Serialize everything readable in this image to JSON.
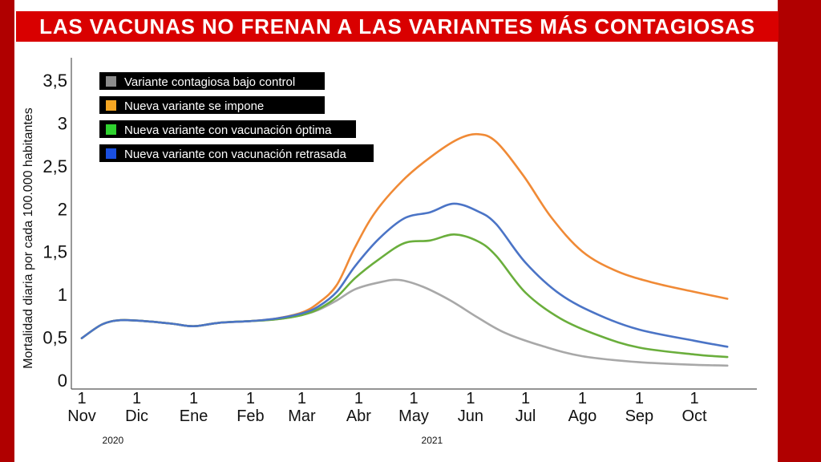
{
  "title": "LAS VACUNAS NO FRENAN A LAS VARIANTES MÁS CONTAGIOSAS",
  "colors": {
    "frame": "#b00000",
    "title_bar": "#d90000"
  },
  "chart_data": {
    "type": "line",
    "title": "LAS VACUNAS NO FRENAN A LAS VARIANTES MÁS CONTAGIOSAS",
    "ylabel": "Mortalidad diaria por cada 100.000 habitantes",
    "xlabel": "",
    "ylim": [
      0,
      3.5
    ],
    "yticks": [
      {
        "v": 0,
        "label": "0"
      },
      {
        "v": 0.5,
        "label": "0,5"
      },
      {
        "v": 1,
        "label": "1"
      },
      {
        "v": 1.5,
        "label": "1,5"
      },
      {
        "v": 2,
        "label": "2"
      },
      {
        "v": 2.5,
        "label": "2,5"
      },
      {
        "v": 3,
        "label": "3"
      },
      {
        "v": 3.5,
        "label": "3,5"
      }
    ],
    "xlim": [
      "2020-11-01",
      "2021-11-12"
    ],
    "xticks": [
      {
        "date": "2020-11-01",
        "day": "1",
        "month": "Nov"
      },
      {
        "date": "2020-12-01",
        "day": "1",
        "month": "Dic"
      },
      {
        "date": "2021-01-01",
        "day": "1",
        "month": "Ene"
      },
      {
        "date": "2021-02-01",
        "day": "1",
        "month": "Feb"
      },
      {
        "date": "2021-03-01",
        "day": "1",
        "month": "Mar"
      },
      {
        "date": "2021-04-01",
        "day": "1",
        "month": "Abr"
      },
      {
        "date": "2021-05-01",
        "day": "1",
        "month": "May"
      },
      {
        "date": "2021-06-01",
        "day": "1",
        "month": "Jun"
      },
      {
        "date": "2021-07-01",
        "day": "1",
        "month": "Jul"
      },
      {
        "date": "2021-08-01",
        "day": "1",
        "month": "Ago"
      },
      {
        "date": "2021-09-01",
        "day": "1",
        "month": "Sep"
      },
      {
        "date": "2021-10-01",
        "day": "1",
        "month": "Oct"
      }
    ],
    "years": [
      {
        "date": "2020-11-18",
        "label": "2020"
      },
      {
        "date": "2021-05-11",
        "label": "2021"
      }
    ],
    "grid": false,
    "legend": "top-left",
    "series": [
      {
        "name": "Variante contagiosa bajo control",
        "color": "#a8a8a8",
        "points": [
          [
            "2020-11-01",
            0.49
          ],
          [
            "2020-11-12",
            0.65
          ],
          [
            "2020-11-22",
            0.7
          ],
          [
            "2020-12-05",
            0.69
          ],
          [
            "2020-12-20",
            0.66
          ],
          [
            "2021-01-01",
            0.63
          ],
          [
            "2021-01-15",
            0.67
          ],
          [
            "2021-02-01",
            0.69
          ],
          [
            "2021-02-15",
            0.71
          ],
          [
            "2021-03-01",
            0.76
          ],
          [
            "2021-03-10",
            0.82
          ],
          [
            "2021-03-20",
            0.93
          ],
          [
            "2021-03-30",
            1.06
          ],
          [
            "2021-04-12",
            1.14
          ],
          [
            "2021-04-23",
            1.17
          ],
          [
            "2021-05-06",
            1.09
          ],
          [
            "2021-05-21",
            0.93
          ],
          [
            "2021-06-05",
            0.73
          ],
          [
            "2021-06-20",
            0.55
          ],
          [
            "2021-07-10",
            0.4
          ],
          [
            "2021-08-01",
            0.28
          ],
          [
            "2021-09-01",
            0.21
          ],
          [
            "2021-10-01",
            0.18
          ],
          [
            "2021-10-19",
            0.17
          ]
        ]
      },
      {
        "name": "Nueva variante se impone",
        "color": "#f08a36",
        "points": [
          [
            "2020-11-01",
            0.49
          ],
          [
            "2020-11-12",
            0.65
          ],
          [
            "2020-11-22",
            0.7
          ],
          [
            "2020-12-05",
            0.69
          ],
          [
            "2020-12-20",
            0.66
          ],
          [
            "2021-01-01",
            0.63
          ],
          [
            "2021-01-15",
            0.67
          ],
          [
            "2021-02-01",
            0.69
          ],
          [
            "2021-02-15",
            0.72
          ],
          [
            "2021-03-01",
            0.79
          ],
          [
            "2021-03-10",
            0.9
          ],
          [
            "2021-03-20",
            1.11
          ],
          [
            "2021-03-30",
            1.55
          ],
          [
            "2021-04-10",
            1.96
          ],
          [
            "2021-04-25",
            2.33
          ],
          [
            "2021-05-10",
            2.6
          ],
          [
            "2021-05-25",
            2.81
          ],
          [
            "2021-06-05",
            2.87
          ],
          [
            "2021-06-15",
            2.78
          ],
          [
            "2021-06-30",
            2.38
          ],
          [
            "2021-07-15",
            1.9
          ],
          [
            "2021-08-01",
            1.5
          ],
          [
            "2021-08-20",
            1.27
          ],
          [
            "2021-09-10",
            1.13
          ],
          [
            "2021-10-01",
            1.03
          ],
          [
            "2021-10-19",
            0.95
          ]
        ]
      },
      {
        "name": "Nueva variante con vacunación óptima",
        "color": "#6aae3c",
        "points": [
          [
            "2020-11-01",
            0.49
          ],
          [
            "2020-11-12",
            0.65
          ],
          [
            "2020-11-22",
            0.7
          ],
          [
            "2020-12-05",
            0.69
          ],
          [
            "2020-12-20",
            0.66
          ],
          [
            "2021-01-01",
            0.63
          ],
          [
            "2021-01-15",
            0.67
          ],
          [
            "2021-02-01",
            0.69
          ],
          [
            "2021-02-15",
            0.71
          ],
          [
            "2021-03-01",
            0.76
          ],
          [
            "2021-03-10",
            0.83
          ],
          [
            "2021-03-20",
            0.97
          ],
          [
            "2021-03-30",
            1.19
          ],
          [
            "2021-04-12",
            1.41
          ],
          [
            "2021-04-26",
            1.6
          ],
          [
            "2021-05-10",
            1.63
          ],
          [
            "2021-05-23",
            1.7
          ],
          [
            "2021-06-05",
            1.62
          ],
          [
            "2021-06-15",
            1.45
          ],
          [
            "2021-07-01",
            1.02
          ],
          [
            "2021-07-20",
            0.72
          ],
          [
            "2021-08-10",
            0.52
          ],
          [
            "2021-09-01",
            0.38
          ],
          [
            "2021-10-01",
            0.3
          ],
          [
            "2021-10-19",
            0.27
          ]
        ]
      },
      {
        "name": "Nueva variante con vacunación retrasada",
        "color": "#4b74c6",
        "points": [
          [
            "2020-11-01",
            0.49
          ],
          [
            "2020-11-12",
            0.65
          ],
          [
            "2020-11-22",
            0.7
          ],
          [
            "2020-12-05",
            0.69
          ],
          [
            "2020-12-20",
            0.66
          ],
          [
            "2021-01-01",
            0.63
          ],
          [
            "2021-01-15",
            0.67
          ],
          [
            "2021-02-01",
            0.69
          ],
          [
            "2021-02-15",
            0.72
          ],
          [
            "2021-03-01",
            0.78
          ],
          [
            "2021-03-10",
            0.86
          ],
          [
            "2021-03-20",
            1.03
          ],
          [
            "2021-03-30",
            1.33
          ],
          [
            "2021-04-12",
            1.65
          ],
          [
            "2021-04-26",
            1.89
          ],
          [
            "2021-05-10",
            1.96
          ],
          [
            "2021-05-23",
            2.06
          ],
          [
            "2021-06-05",
            1.97
          ],
          [
            "2021-06-15",
            1.82
          ],
          [
            "2021-07-01",
            1.37
          ],
          [
            "2021-07-20",
            1.0
          ],
          [
            "2021-08-10",
            0.76
          ],
          [
            "2021-09-01",
            0.59
          ],
          [
            "2021-10-01",
            0.46
          ],
          [
            "2021-10-19",
            0.39
          ]
        ]
      }
    ]
  }
}
